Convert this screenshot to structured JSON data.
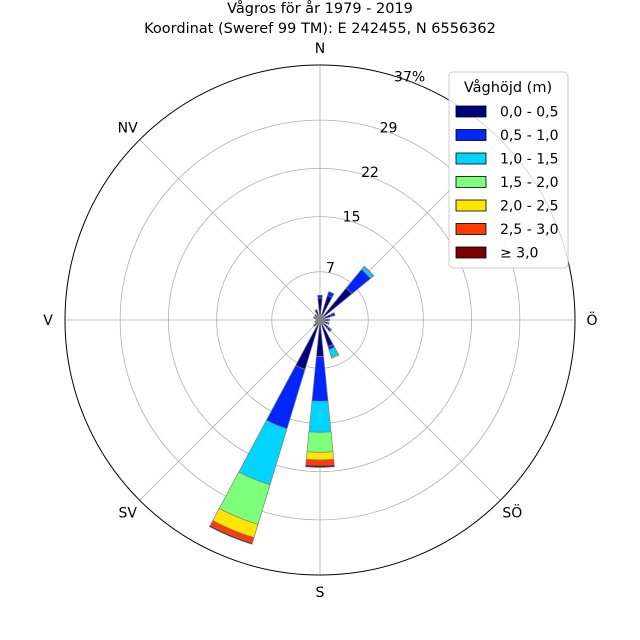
{
  "chart_data": {
    "type": "windrose",
    "title": "Vågros för år 1979 - 2019",
    "subtitle": "Koordinat (Sweref 99 TM): E 242455, N 6556362",
    "direction_labels": [
      {
        "name": "N",
        "label": "N",
        "angle": 0
      },
      {
        "name": "NV",
        "label": "NV",
        "angle": 315
      },
      {
        "name": "V",
        "label": "V",
        "angle": 270
      },
      {
        "name": "SV",
        "label": "SV",
        "angle": 225
      },
      {
        "name": "S",
        "label": "S",
        "angle": 180
      },
      {
        "name": "SO",
        "label": "SÖ",
        "angle": 135
      },
      {
        "name": "O",
        "label": "Ö",
        "angle": 90
      }
    ],
    "radial_max": 37,
    "rings": [
      {
        "value": 7,
        "label": "7"
      },
      {
        "value": 15,
        "label": "15"
      },
      {
        "value": 22,
        "label": "22"
      },
      {
        "value": 29,
        "label": "29"
      },
      {
        "value": 37,
        "label": "37%"
      }
    ],
    "legend": {
      "title": "Våghöjd (m)",
      "placement": "top-right",
      "entries": [
        "0,0 - 0,5",
        "0,5 - 1,0",
        "1,0 - 1,5",
        "1,5 - 2,0",
        "2,0 - 2,5",
        "2,5 - 3,0",
        "≥ 3,0"
      ]
    },
    "colors": [
      "#00007f",
      "#0025ff",
      "#00d4ff",
      "#7dff7a",
      "#ffe500",
      "#ff3b00",
      "#7f0000"
    ],
    "sector_width_deg": 11.25,
    "series_cumulative_percent": [
      {
        "direction_deg": 180,
        "values": [
          5.3,
          11.8,
          16.3,
          19.2,
          20.3,
          21.1,
          21.4
        ]
      },
      {
        "direction_deg": 202.5,
        "values": [
          7.5,
          16.5,
          25.0,
          31.0,
          33.0,
          33.8,
          34.0
        ]
      },
      {
        "direction_deg": 157.5,
        "values": [
          4.0,
          4.5,
          5.6,
          5.8,
          5.8,
          5.8,
          5.8
        ]
      },
      {
        "direction_deg": 135,
        "values": [
          1.6,
          2.1,
          2.2,
          2.2,
          2.2,
          2.2,
          2.2
        ]
      },
      {
        "direction_deg": 112.5,
        "values": [
          1.2,
          1.4,
          1.4,
          1.4,
          1.4,
          1.4,
          1.4
        ]
      },
      {
        "direction_deg": 90,
        "values": [
          1.2,
          1.4,
          1.4,
          1.4,
          1.4,
          1.4,
          1.4
        ]
      },
      {
        "direction_deg": 67.5,
        "values": [
          1.7,
          2.3,
          2.3,
          2.3,
          2.3,
          2.3,
          2.3
        ]
      },
      {
        "direction_deg": 45,
        "values": [
          6.0,
          9.5,
          10.0,
          10.1,
          10.1,
          10.1,
          10.1
        ]
      },
      {
        "direction_deg": 22.5,
        "values": [
          3.7,
          4.3,
          4.3,
          4.3,
          4.3,
          4.3,
          4.3
        ]
      },
      {
        "direction_deg": 0,
        "values": [
          3.2,
          3.6,
          3.6,
          3.6,
          3.6,
          3.6,
          3.6
        ]
      },
      {
        "direction_deg": 337.5,
        "values": [
          1.5,
          1.6,
          1.6,
          1.6,
          1.6,
          1.6,
          1.6
        ]
      },
      {
        "direction_deg": 315,
        "values": [
          1.0,
          1.0,
          1.0,
          1.0,
          1.0,
          1.0,
          1.0
        ]
      },
      {
        "direction_deg": 292.5,
        "values": [
          1.0,
          1.0,
          1.0,
          1.0,
          1.0,
          1.0,
          1.0
        ]
      },
      {
        "direction_deg": 270,
        "values": [
          0.6,
          0.6,
          0.6,
          0.6,
          0.6,
          0.6,
          0.6
        ]
      },
      {
        "direction_deg": 247.5,
        "values": [
          0.8,
          0.8,
          0.8,
          0.8,
          0.8,
          0.8,
          0.8
        ]
      },
      {
        "direction_deg": 225,
        "values": [
          1.2,
          1.2,
          1.2,
          1.2,
          1.2,
          1.2,
          1.2
        ]
      }
    ]
  }
}
